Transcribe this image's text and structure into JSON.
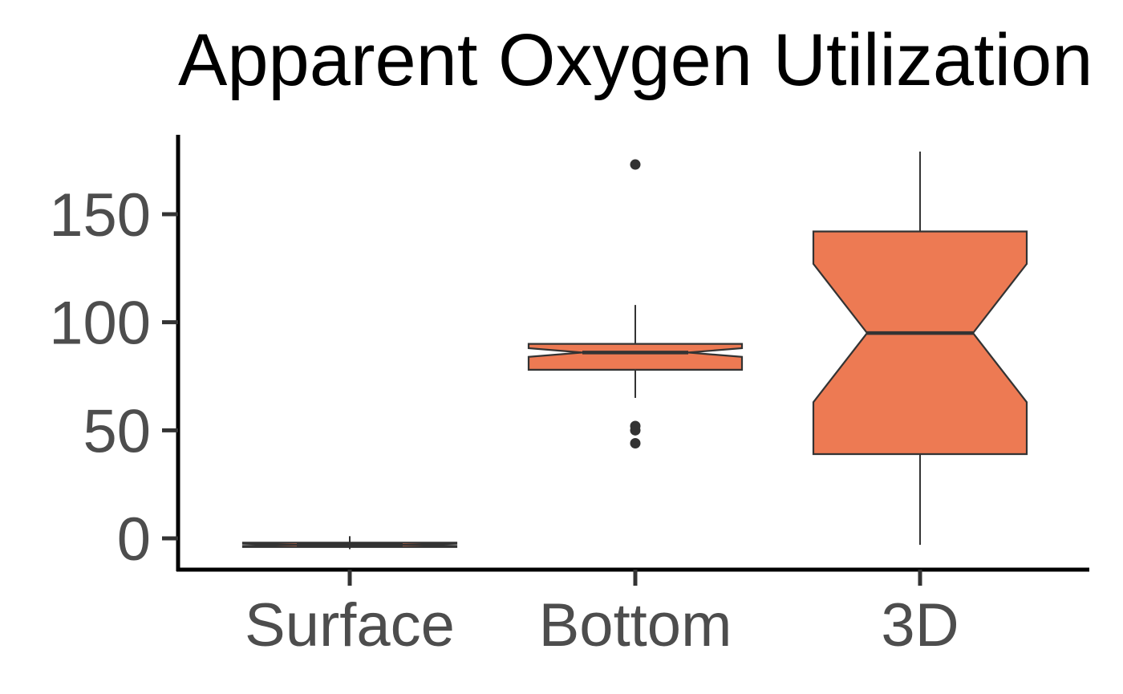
{
  "chart_data": {
    "type": "boxplot",
    "title": "Apparent Oxygen Utilization",
    "xlabel": "",
    "ylabel": "",
    "categories": [
      "Surface",
      "Bottom",
      "3D"
    ],
    "yticks": [
      0,
      50,
      100,
      150
    ],
    "ylim": [
      -14,
      188
    ],
    "notched": true,
    "grid": false,
    "legend": "none",
    "boxes": [
      {
        "category": "Surface",
        "lower_whisker": -5,
        "q1": -4,
        "median": -3,
        "q3": -2,
        "upper_whisker": 1,
        "notch_low": -3.5,
        "notch_high": -2.5,
        "outliers": []
      },
      {
        "category": "Bottom",
        "lower_whisker": 65,
        "q1": 78,
        "median": 86,
        "q3": 90,
        "upper_whisker": 108,
        "notch_low": 84,
        "notch_high": 88,
        "outliers": [
          44,
          50,
          52,
          173
        ]
      },
      {
        "category": "3D",
        "lower_whisker": -3,
        "q1": 39,
        "median": 95,
        "q3": 142,
        "upper_whisker": 179,
        "notch_low": 63,
        "notch_high": 127,
        "outliers": []
      }
    ],
    "colors": {
      "box_fill": "#ED7A53",
      "box_stroke": "#333333",
      "axis": "#000000",
      "tick_text": "#4d4d4d"
    }
  }
}
